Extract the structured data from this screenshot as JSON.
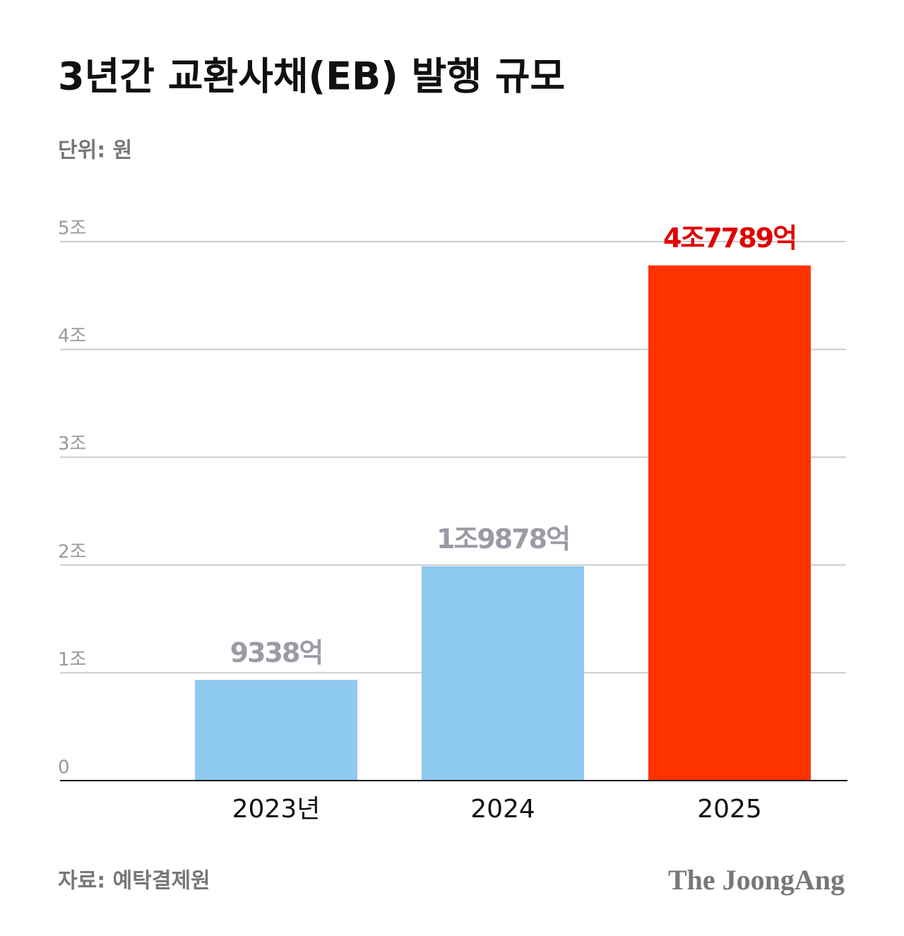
{
  "title": "3년간 교환사채(EB) 발행 규모",
  "subtitle": "단위: 원",
  "source": "자료: 예탁결제원",
  "logo": "The JoongAng",
  "chart_data": {
    "type": "bar",
    "categories": [
      "2023년",
      "2024",
      "2025"
    ],
    "values": [
      0.9338,
      1.9878,
      4.7789
    ],
    "value_labels": [
      "9338억",
      "1조9878억",
      "4조7789억"
    ],
    "colors": [
      "#8ec9f0",
      "#8ec9f0",
      "#ff3300"
    ],
    "value_label_colors": [
      "#9b9ba6",
      "#9b9ba6",
      "#e00000"
    ],
    "ylim": [
      0,
      5
    ],
    "yticks": [
      0,
      {
        "value": 1,
        "label": "1조"
      },
      {
        "value": 2,
        "label": "2조"
      },
      {
        "value": 3,
        "label": "3조"
      },
      {
        "value": 4,
        "label": "4조"
      },
      {
        "value": 5,
        "label": "5조"
      }
    ],
    "grid": true
  }
}
